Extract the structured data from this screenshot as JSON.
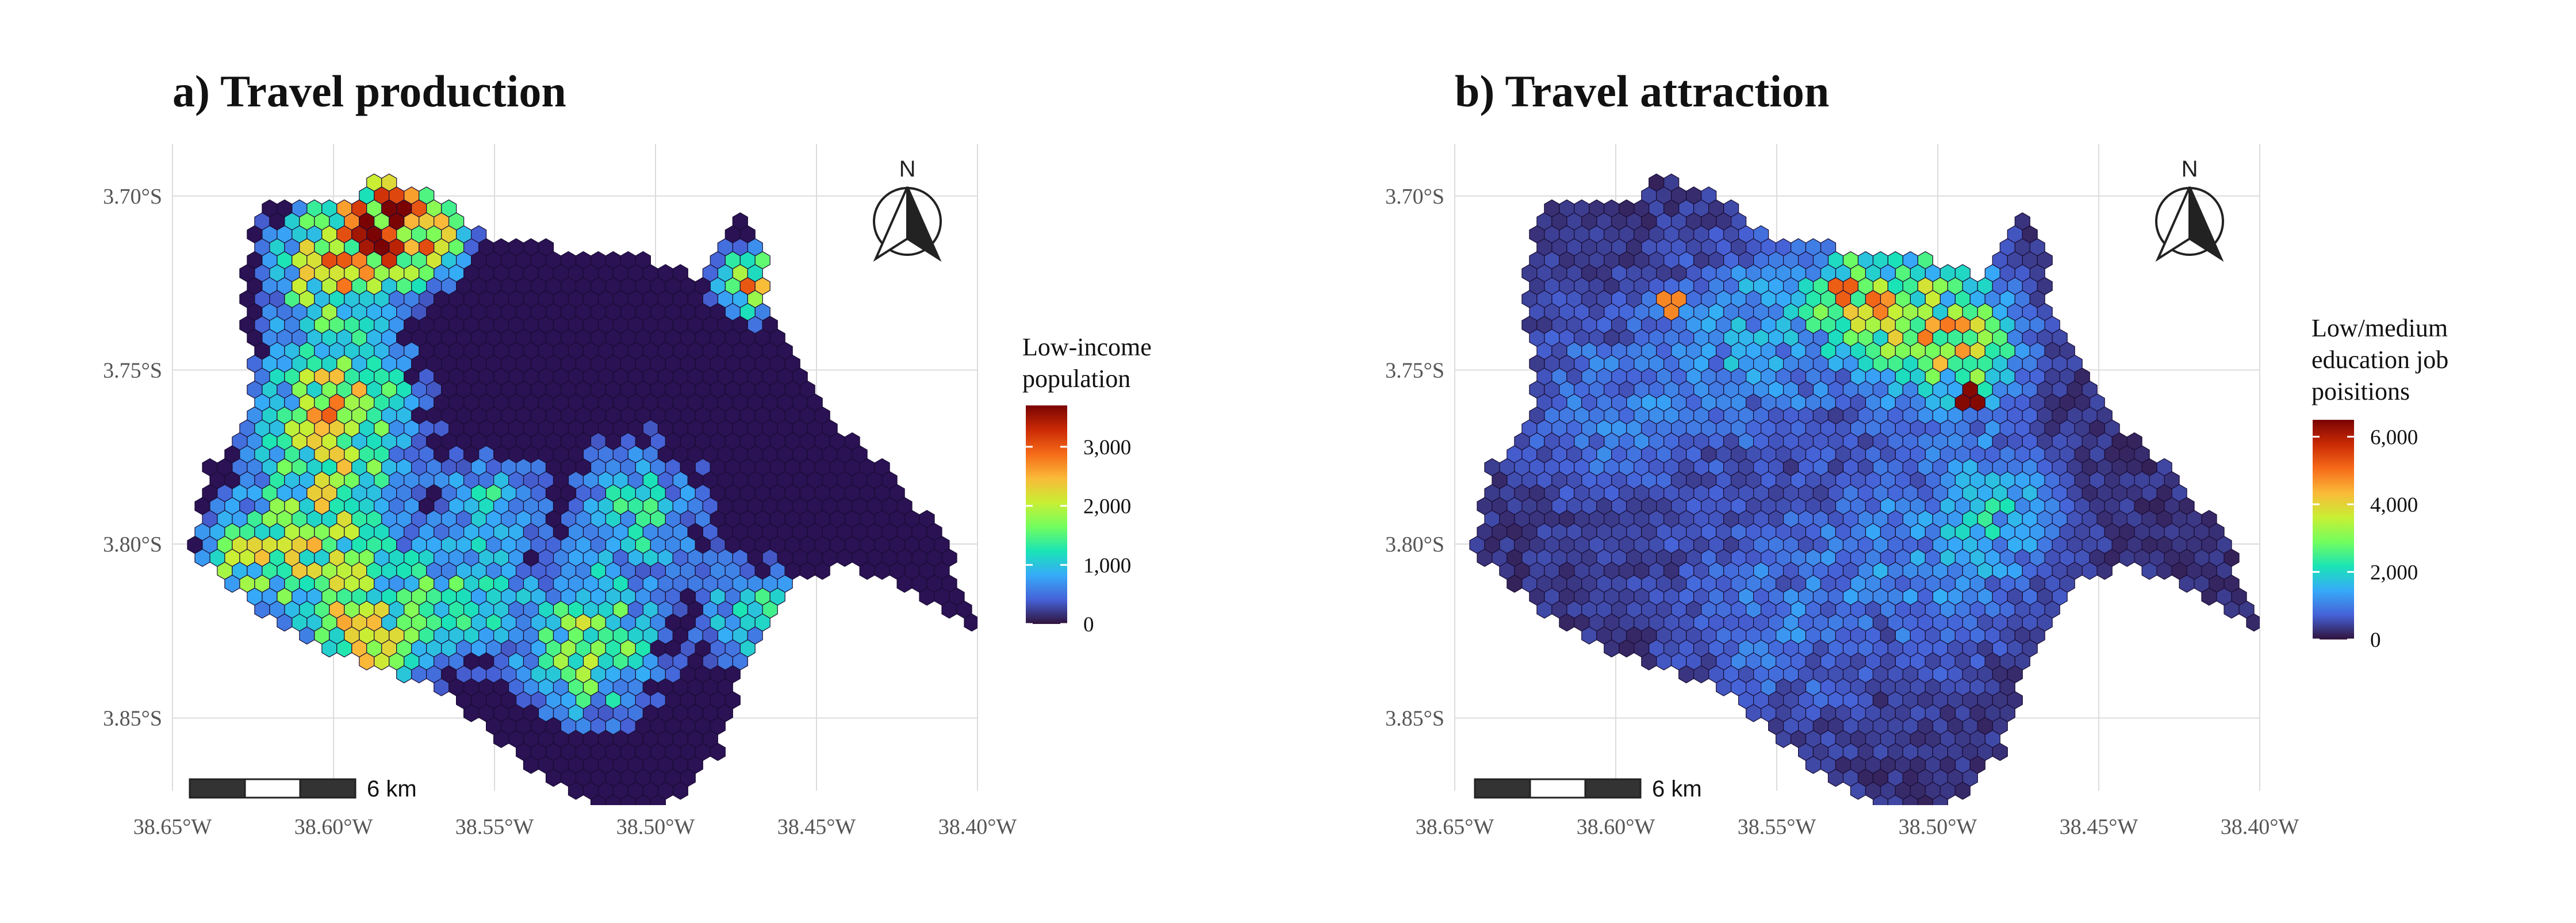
{
  "panels": [
    {
      "id": "production",
      "title": "a) Travel production",
      "lat_labels": [
        "3.70°S",
        "3.75°S",
        "3.80°S",
        "3.85°S"
      ],
      "lon_labels": [
        "38.65°W",
        "38.60°W",
        "38.55°W",
        "38.50°W",
        "38.45°W",
        "38.40°W"
      ],
      "north_label": "N",
      "scale_label": "6 km",
      "legend": {
        "title_lines": [
          "Low-income",
          "population"
        ],
        "max_value": 3700,
        "ticks": [
          {
            "value": 0,
            "label": "0"
          },
          {
            "value": 1000,
            "label": "1,000"
          },
          {
            "value": 2000,
            "label": "2,000"
          },
          {
            "value": 3000,
            "label": "3,000"
          }
        ]
      },
      "hotspots": [
        {
          "lon": -38.585,
          "lat": -3.705,
          "value": 2600,
          "spread": 0.015
        },
        {
          "lon": -38.6,
          "lat": -3.72,
          "value": 2200,
          "spread": 0.018
        },
        {
          "lon": -38.57,
          "lat": -3.712,
          "value": 1800,
          "spread": 0.012
        },
        {
          "lon": -38.598,
          "lat": -3.76,
          "value": 2100,
          "spread": 0.022
        },
        {
          "lon": -38.605,
          "lat": -3.8,
          "value": 1800,
          "spread": 0.025
        },
        {
          "lon": -38.59,
          "lat": -3.83,
          "value": 1700,
          "spread": 0.018
        },
        {
          "lon": -38.56,
          "lat": -3.815,
          "value": 1300,
          "spread": 0.018
        },
        {
          "lon": -38.52,
          "lat": -3.83,
          "value": 1900,
          "spread": 0.02
        },
        {
          "lon": -38.505,
          "lat": -3.79,
          "value": 1200,
          "spread": 0.02
        },
        {
          "lon": -38.47,
          "lat": -3.82,
          "value": 1300,
          "spread": 0.015
        },
        {
          "lon": -38.47,
          "lat": -3.725,
          "value": 2400,
          "spread": 0.01
        },
        {
          "lon": -38.55,
          "lat": -3.785,
          "value": 1000,
          "spread": 0.015
        },
        {
          "lon": -38.63,
          "lat": -3.805,
          "value": 1200,
          "spread": 0.012
        }
      ]
    },
    {
      "id": "attraction",
      "title": "b) Travel attraction",
      "lat_labels": [
        "3.70°S",
        "3.75°S",
        "3.80°S",
        "3.85°S"
      ],
      "lon_labels": [
        "38.65°W",
        "38.60°W",
        "38.55°W",
        "38.50°W",
        "38.45°W",
        "38.40°W"
      ],
      "north_label": "N",
      "scale_label": "6 km",
      "legend": {
        "title_lines": [
          "Low/medium",
          "education job",
          "poisitions"
        ],
        "max_value": 6500,
        "ticks": [
          {
            "value": 0,
            "label": "0"
          },
          {
            "value": 2000,
            "label": "2,000"
          },
          {
            "value": 4000,
            "label": "4,000"
          },
          {
            "value": 6000,
            "label": "6,000"
          }
        ]
      },
      "hotspots": [
        {
          "lon": -38.505,
          "lat": -3.735,
          "value": 2600,
          "spread": 0.022
        },
        {
          "lon": -38.525,
          "lat": -3.728,
          "value": 2400,
          "spread": 0.014
        },
        {
          "lon": -38.49,
          "lat": -3.745,
          "value": 1800,
          "spread": 0.016
        },
        {
          "lon": -38.555,
          "lat": -3.74,
          "value": 1200,
          "spread": 0.025
        },
        {
          "lon": -38.5,
          "lat": -3.8,
          "value": 1000,
          "spread": 0.03
        },
        {
          "lon": -38.48,
          "lat": -3.79,
          "value": 1100,
          "spread": 0.015
        },
        {
          "lon": -38.6,
          "lat": -3.76,
          "value": 700,
          "spread": 0.03
        },
        {
          "lon": -38.55,
          "lat": -3.82,
          "value": 700,
          "spread": 0.03
        }
      ],
      "point_peaks": [
        {
          "lon": -38.49,
          "lat": -3.757,
          "value": 6400
        },
        {
          "lon": -38.583,
          "lat": -3.733,
          "value": 4800
        },
        {
          "lon": -38.53,
          "lat": -3.727,
          "value": 5200
        }
      ]
    }
  ],
  "colors": {
    "background_hex": "#2a1254",
    "grid": "#dddddd",
    "colormap": [
      "#30123b",
      "#4662d7",
      "#36aaf9",
      "#1ae4b6",
      "#72fe5e",
      "#c8ef34",
      "#faba39",
      "#f66b19",
      "#ca2a04",
      "#7a0403"
    ]
  },
  "map": {
    "lon_range": [
      -38.65,
      -38.4
    ],
    "lat_range": [
      -3.875,
      -3.685
    ]
  }
}
